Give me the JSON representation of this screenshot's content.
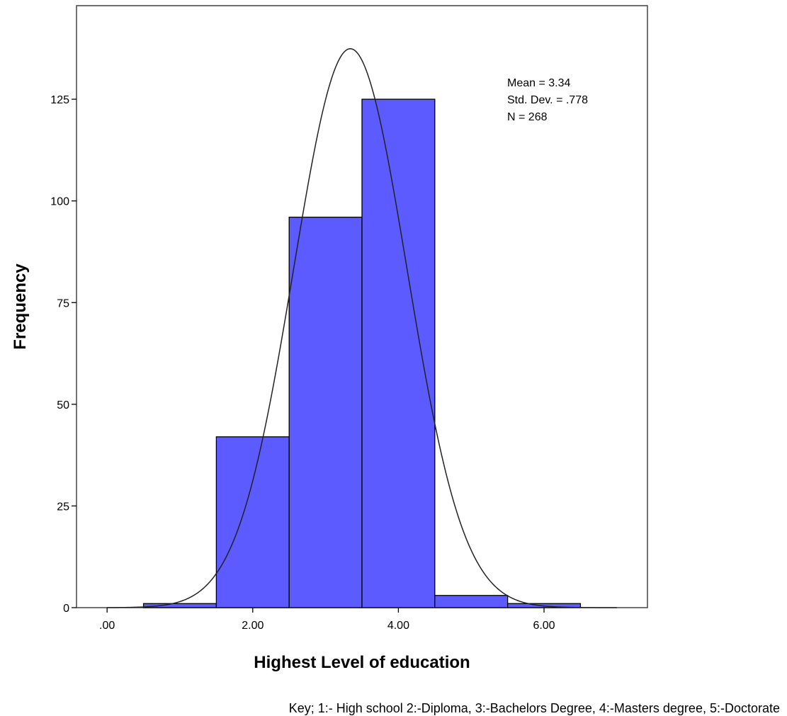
{
  "chart_data": {
    "type": "bar",
    "subtype": "histogram",
    "xlabel": "Highest Level of education",
    "ylabel": "Frequency",
    "x_ticks": [
      ".00",
      "2.00",
      "4.00",
      "6.00"
    ],
    "x_tick_values": [
      0,
      2,
      4,
      6
    ],
    "y_ticks": [
      "0",
      "25",
      "50",
      "75",
      "100",
      "125"
    ],
    "y_tick_values": [
      0,
      25,
      50,
      75,
      100,
      125
    ],
    "xlim": [
      -0.42,
      7.42
    ],
    "ylim": [
      0,
      148
    ],
    "bins": [
      {
        "start": 0.5,
        "end": 1.5,
        "value": 1
      },
      {
        "start": 1.5,
        "end": 2.5,
        "value": 42
      },
      {
        "start": 2.5,
        "end": 3.5,
        "value": 96
      },
      {
        "start": 3.5,
        "end": 4.5,
        "value": 125
      },
      {
        "start": 4.5,
        "end": 5.5,
        "value": 3
      },
      {
        "start": 5.5,
        "end": 6.5,
        "value": 1
      }
    ],
    "normal_curve": {
      "mean": 3.34,
      "sd": 0.778,
      "n": 268,
      "bin_width": 1
    },
    "stats_lines": [
      "Mean = 3.34",
      "Std. Dev. = .778",
      "N = 268"
    ],
    "bar_color": "#5b5bff",
    "grid": false,
    "legend": "none"
  },
  "footnote": "Key; 1:- High school 2:-Diploma, 3:-Bachelors Degree, 4:-Masters degree, 5:-Doctorate"
}
